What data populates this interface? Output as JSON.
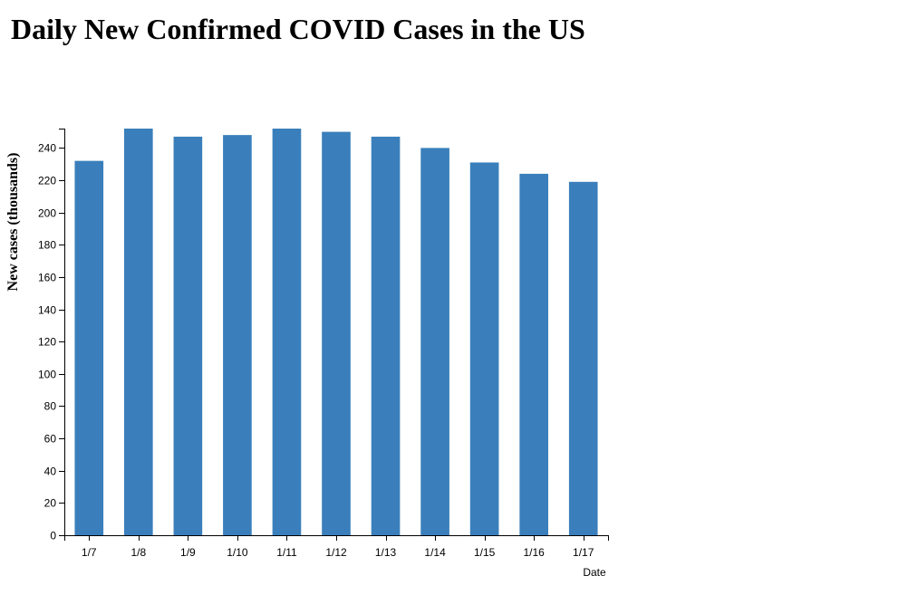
{
  "colors": {
    "bar": "#3a7fbb",
    "axis": "#000000",
    "background": "#ffffff"
  },
  "chart_data": {
    "type": "bar",
    "title": "Daily New Confirmed COVID Cases in the US",
    "xlabel": "Date",
    "ylabel": "New cases (thousands)",
    "categories": [
      "1/7",
      "1/8",
      "1/9",
      "1/10",
      "1/11",
      "1/12",
      "1/13",
      "1/14",
      "1/15",
      "1/16",
      "1/17"
    ],
    "values": [
      232,
      252,
      247,
      248,
      252,
      250,
      247,
      240,
      231,
      224,
      219
    ],
    "ylim": [
      0,
      252
    ],
    "yticks": [
      0,
      20,
      40,
      60,
      80,
      100,
      120,
      140,
      160,
      180,
      200,
      220,
      240
    ],
    "grid": false,
    "legend": "none"
  }
}
